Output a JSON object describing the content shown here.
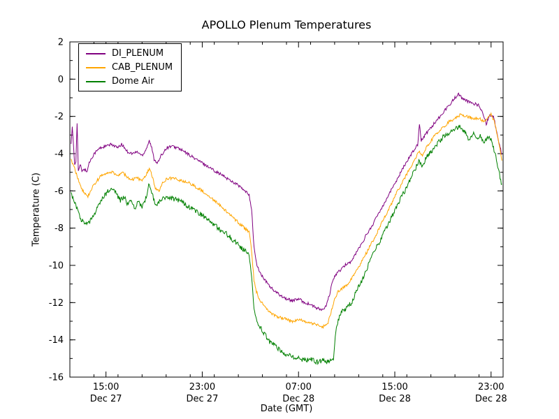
{
  "chart_data": {
    "type": "line",
    "title": "APOLLO Plenum Temperatures",
    "xlabel": "Date (GMT)",
    "ylabel": "Temperature (C)",
    "x_unit": "hours since Dec 27 00:00 GMT",
    "xlim": [
      12.0,
      48.0
    ],
    "ylim": [
      -16,
      2
    ],
    "grid": false,
    "legend_position": "upper left",
    "x_ticks": [
      {
        "t": 15,
        "time": "15:00",
        "date": "Dec 27"
      },
      {
        "t": 23,
        "time": "23:00",
        "date": "Dec 27"
      },
      {
        "t": 31,
        "time": "07:00",
        "date": "Dec 28"
      },
      {
        "t": 39,
        "time": "15:00",
        "date": "Dec 28"
      },
      {
        "t": 47,
        "time": "23:00",
        "date": "Dec 28"
      }
    ],
    "x_minor_step": 2,
    "y_ticks": [
      2,
      0,
      -2,
      -4,
      -6,
      -8,
      -10,
      -12,
      -14,
      -16
    ],
    "y_minor_step": 1,
    "series": [
      {
        "name": "DI_PLENUM",
        "color": "#800080",
        "points": [
          [
            12.1,
            -3.4
          ],
          [
            12.2,
            -2.6
          ],
          [
            12.3,
            -3.6
          ],
          [
            12.4,
            -4.6
          ],
          [
            12.5,
            -4.4
          ],
          [
            12.6,
            -2.3
          ],
          [
            12.7,
            -4.9
          ],
          [
            12.9,
            -4.6
          ],
          [
            13.0,
            -5.0
          ],
          [
            13.2,
            -4.8
          ],
          [
            13.4,
            -5.0
          ],
          [
            13.6,
            -4.5
          ],
          [
            14.0,
            -4.0
          ],
          [
            14.5,
            -3.7
          ],
          [
            15.0,
            -3.6
          ],
          [
            15.5,
            -3.5
          ],
          [
            16.0,
            -3.7
          ],
          [
            16.3,
            -3.5
          ],
          [
            16.8,
            -3.9
          ],
          [
            17.2,
            -4.0
          ],
          [
            17.6,
            -3.9
          ],
          [
            18.0,
            -4.1
          ],
          [
            18.3,
            -3.8
          ],
          [
            18.6,
            -3.3
          ],
          [
            18.8,
            -3.7
          ],
          [
            19.0,
            -4.3
          ],
          [
            19.3,
            -4.5
          ],
          [
            19.6,
            -4.1
          ],
          [
            20.0,
            -3.7
          ],
          [
            20.4,
            -3.6
          ],
          [
            21.0,
            -3.7
          ],
          [
            21.5,
            -3.9
          ],
          [
            22.0,
            -4.1
          ],
          [
            22.5,
            -4.3
          ],
          [
            23.0,
            -4.5
          ],
          [
            23.5,
            -4.7
          ],
          [
            24.0,
            -4.9
          ],
          [
            24.5,
            -5.1
          ],
          [
            25.0,
            -5.3
          ],
          [
            25.5,
            -5.5
          ],
          [
            26.0,
            -5.7
          ],
          [
            26.5,
            -6.0
          ],
          [
            26.9,
            -6.2
          ],
          [
            27.1,
            -7.0
          ],
          [
            27.3,
            -9.0
          ],
          [
            27.5,
            -9.9
          ],
          [
            27.8,
            -10.4
          ],
          [
            28.2,
            -10.8
          ],
          [
            28.6,
            -11.1
          ],
          [
            29.0,
            -11.4
          ],
          [
            29.5,
            -11.6
          ],
          [
            30.0,
            -11.8
          ],
          [
            30.5,
            -11.9
          ],
          [
            31.0,
            -11.8
          ],
          [
            31.5,
            -12.0
          ],
          [
            32.0,
            -12.1
          ],
          [
            32.5,
            -12.3
          ],
          [
            33.0,
            -12.4
          ],
          [
            33.3,
            -12.2
          ],
          [
            33.6,
            -11.5
          ],
          [
            33.9,
            -10.7
          ],
          [
            34.2,
            -10.4
          ],
          [
            34.6,
            -10.2
          ],
          [
            35.0,
            -9.9
          ],
          [
            35.4,
            -9.8
          ],
          [
            35.8,
            -9.3
          ],
          [
            36.2,
            -8.9
          ],
          [
            36.6,
            -8.4
          ],
          [
            37.0,
            -8.0
          ],
          [
            37.5,
            -7.4
          ],
          [
            38.0,
            -6.8
          ],
          [
            38.5,
            -6.2
          ],
          [
            39.0,
            -5.6
          ],
          [
            39.5,
            -5.0
          ],
          [
            40.0,
            -4.4
          ],
          [
            40.5,
            -3.9
          ],
          [
            40.9,
            -3.5
          ],
          [
            41.05,
            -2.4
          ],
          [
            41.2,
            -3.3
          ],
          [
            41.5,
            -3.0
          ],
          [
            42.0,
            -2.6
          ],
          [
            42.5,
            -2.2
          ],
          [
            43.0,
            -1.8
          ],
          [
            43.5,
            -1.4
          ],
          [
            44.0,
            -1.0
          ],
          [
            44.3,
            -0.8
          ],
          [
            44.7,
            -1.1
          ],
          [
            45.1,
            -1.2
          ],
          [
            45.5,
            -1.3
          ],
          [
            46.0,
            -1.4
          ],
          [
            46.4,
            -2.0
          ],
          [
            46.6,
            -2.4
          ],
          [
            46.9,
            -1.9
          ],
          [
            47.2,
            -2.0
          ],
          [
            47.4,
            -2.6
          ],
          [
            47.6,
            -3.2
          ],
          [
            47.9,
            -4.1
          ]
        ]
      },
      {
        "name": "CAB_PLENUM",
        "color": "#FFA500",
        "points": [
          [
            12.1,
            -4.3
          ],
          [
            12.4,
            -4.8
          ],
          [
            12.7,
            -5.4
          ],
          [
            13.0,
            -5.9
          ],
          [
            13.3,
            -6.2
          ],
          [
            13.5,
            -6.3
          ],
          [
            13.8,
            -5.9
          ],
          [
            14.2,
            -5.5
          ],
          [
            14.6,
            -5.2
          ],
          [
            15.0,
            -5.1
          ],
          [
            15.5,
            -5.0
          ],
          [
            16.0,
            -5.2
          ],
          [
            16.4,
            -5.0
          ],
          [
            16.8,
            -5.3
          ],
          [
            17.2,
            -5.4
          ],
          [
            17.6,
            -5.3
          ],
          [
            18.0,
            -5.5
          ],
          [
            18.3,
            -5.2
          ],
          [
            18.6,
            -4.8
          ],
          [
            18.9,
            -5.3
          ],
          [
            19.1,
            -5.9
          ],
          [
            19.4,
            -6.0
          ],
          [
            19.7,
            -5.6
          ],
          [
            20.0,
            -5.4
          ],
          [
            20.5,
            -5.3
          ],
          [
            21.0,
            -5.4
          ],
          [
            21.5,
            -5.5
          ],
          [
            22.0,
            -5.6
          ],
          [
            22.5,
            -5.8
          ],
          [
            23.0,
            -6.0
          ],
          [
            23.5,
            -6.3
          ],
          [
            24.0,
            -6.5
          ],
          [
            24.5,
            -6.8
          ],
          [
            25.0,
            -7.1
          ],
          [
            25.5,
            -7.4
          ],
          [
            26.0,
            -7.7
          ],
          [
            26.5,
            -8.0
          ],
          [
            26.9,
            -8.2
          ],
          [
            27.1,
            -9.2
          ],
          [
            27.3,
            -10.8
          ],
          [
            27.5,
            -11.4
          ],
          [
            27.8,
            -11.9
          ],
          [
            28.2,
            -12.2
          ],
          [
            28.6,
            -12.5
          ],
          [
            29.0,
            -12.7
          ],
          [
            29.5,
            -12.8
          ],
          [
            30.0,
            -12.9
          ],
          [
            30.5,
            -13.0
          ],
          [
            31.0,
            -12.9
          ],
          [
            31.5,
            -13.0
          ],
          [
            32.0,
            -13.1
          ],
          [
            32.5,
            -13.2
          ],
          [
            33.0,
            -13.3
          ],
          [
            33.4,
            -13.2
          ],
          [
            33.7,
            -12.5
          ],
          [
            34.0,
            -11.8
          ],
          [
            34.3,
            -11.4
          ],
          [
            34.7,
            -11.2
          ],
          [
            35.1,
            -11.0
          ],
          [
            35.5,
            -10.6
          ],
          [
            36.0,
            -10.1
          ],
          [
            36.5,
            -9.5
          ],
          [
            37.0,
            -8.9
          ],
          [
            37.5,
            -8.3
          ],
          [
            38.0,
            -7.6
          ],
          [
            38.5,
            -7.0
          ],
          [
            39.0,
            -6.3
          ],
          [
            39.5,
            -5.7
          ],
          [
            40.0,
            -5.1
          ],
          [
            40.5,
            -4.5
          ],
          [
            41.0,
            -3.9
          ],
          [
            41.3,
            -4.1
          ],
          [
            41.6,
            -3.7
          ],
          [
            42.0,
            -3.3
          ],
          [
            42.5,
            -2.9
          ],
          [
            43.0,
            -2.6
          ],
          [
            43.5,
            -2.3
          ],
          [
            44.0,
            -2.1
          ],
          [
            44.5,
            -1.9
          ],
          [
            45.0,
            -2.0
          ],
          [
            45.5,
            -2.1
          ],
          [
            46.0,
            -2.1
          ],
          [
            46.4,
            -2.3
          ],
          [
            46.7,
            -2.1
          ],
          [
            47.0,
            -1.9
          ],
          [
            47.3,
            -2.3
          ],
          [
            47.6,
            -3.3
          ],
          [
            47.9,
            -4.3
          ]
        ]
      },
      {
        "name": "Dome Air",
        "color": "#008000",
        "points": [
          [
            12.1,
            -6.1
          ],
          [
            12.4,
            -6.6
          ],
          [
            12.7,
            -7.2
          ],
          [
            13.0,
            -7.6
          ],
          [
            13.3,
            -7.8
          ],
          [
            13.6,
            -7.7
          ],
          [
            14.0,
            -7.3
          ],
          [
            14.4,
            -6.8
          ],
          [
            14.8,
            -6.3
          ],
          [
            15.2,
            -6.0
          ],
          [
            15.5,
            -5.8
          ],
          [
            15.8,
            -6.1
          ],
          [
            16.2,
            -6.5
          ],
          [
            16.5,
            -6.3
          ],
          [
            16.8,
            -6.7
          ],
          [
            17.1,
            -6.5
          ],
          [
            17.4,
            -6.9
          ],
          [
            17.7,
            -6.6
          ],
          [
            18.0,
            -6.9
          ],
          [
            18.3,
            -6.4
          ],
          [
            18.6,
            -5.6
          ],
          [
            18.9,
            -6.3
          ],
          [
            19.1,
            -6.8
          ],
          [
            19.4,
            -6.6
          ],
          [
            19.7,
            -6.4
          ],
          [
            20.0,
            -6.3
          ],
          [
            20.5,
            -6.4
          ],
          [
            21.0,
            -6.5
          ],
          [
            21.5,
            -6.7
          ],
          [
            22.0,
            -6.9
          ],
          [
            22.5,
            -7.1
          ],
          [
            23.0,
            -7.3
          ],
          [
            23.5,
            -7.6
          ],
          [
            24.0,
            -7.8
          ],
          [
            24.5,
            -8.1
          ],
          [
            25.0,
            -8.3
          ],
          [
            25.5,
            -8.6
          ],
          [
            26.0,
            -8.9
          ],
          [
            26.5,
            -9.2
          ],
          [
            26.9,
            -9.4
          ],
          [
            27.1,
            -10.5
          ],
          [
            27.3,
            -12.3
          ],
          [
            27.5,
            -12.9
          ],
          [
            27.8,
            -13.3
          ],
          [
            28.2,
            -13.7
          ],
          [
            28.6,
            -14.1
          ],
          [
            29.0,
            -14.3
          ],
          [
            29.5,
            -14.6
          ],
          [
            30.0,
            -14.8
          ],
          [
            30.5,
            -14.9
          ],
          [
            31.0,
            -15.0
          ],
          [
            31.5,
            -15.1
          ],
          [
            32.0,
            -15.0
          ],
          [
            32.5,
            -15.2
          ],
          [
            33.0,
            -15.1
          ],
          [
            33.5,
            -15.2
          ],
          [
            33.9,
            -15.0
          ],
          [
            34.1,
            -13.6
          ],
          [
            34.3,
            -12.9
          ],
          [
            34.6,
            -12.5
          ],
          [
            35.0,
            -12.3
          ],
          [
            35.4,
            -12.0
          ],
          [
            35.8,
            -11.4
          ],
          [
            36.2,
            -10.9
          ],
          [
            36.6,
            -10.3
          ],
          [
            37.0,
            -9.7
          ],
          [
            37.5,
            -9.0
          ],
          [
            38.0,
            -8.4
          ],
          [
            38.5,
            -7.7
          ],
          [
            39.0,
            -7.1
          ],
          [
            39.5,
            -6.4
          ],
          [
            40.0,
            -5.8
          ],
          [
            40.5,
            -5.1
          ],
          [
            41.0,
            -4.4
          ],
          [
            41.3,
            -4.7
          ],
          [
            41.6,
            -4.2
          ],
          [
            42.0,
            -3.9
          ],
          [
            42.5,
            -3.5
          ],
          [
            43.0,
            -3.1
          ],
          [
            43.5,
            -2.9
          ],
          [
            44.0,
            -2.7
          ],
          [
            44.4,
            -2.5
          ],
          [
            44.8,
            -2.8
          ],
          [
            45.2,
            -3.3
          ],
          [
            45.5,
            -2.9
          ],
          [
            45.8,
            -3.2
          ],
          [
            46.1,
            -3.0
          ],
          [
            46.4,
            -3.5
          ],
          [
            46.7,
            -3.1
          ],
          [
            47.0,
            -3.3
          ],
          [
            47.3,
            -3.9
          ],
          [
            47.6,
            -4.8
          ],
          [
            47.9,
            -5.7
          ]
        ]
      }
    ]
  }
}
